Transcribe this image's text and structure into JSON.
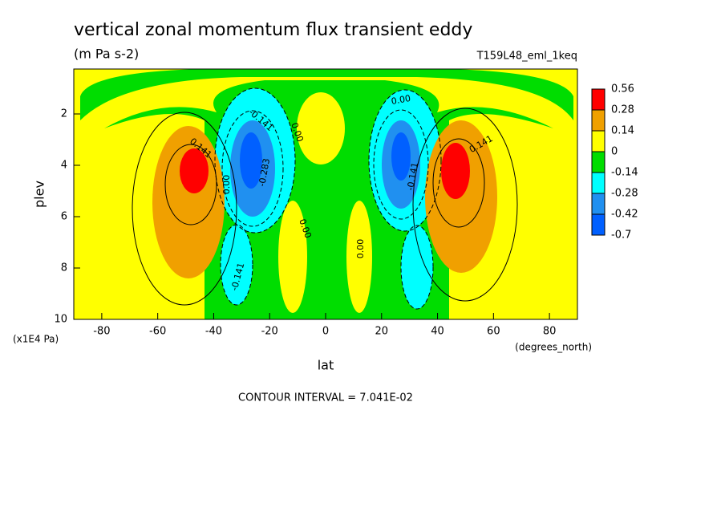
{
  "chart_data": {
    "type": "contour",
    "title": "vertical zonal momentum flux transient eddy",
    "subtitle": "(m Pa s-2)",
    "annotation": "T159L48_eml_1keq",
    "x_label": "lat",
    "x_units": "(degrees_north)",
    "y_label": "plev",
    "y_units": "(x1E4 Pa)",
    "footer": "CONTOUR INTERVAL = 7.041E-02",
    "xlim": [
      -90,
      90
    ],
    "xticks": [
      -80,
      -60,
      -40,
      -20,
      0,
      20,
      40,
      60,
      80
    ],
    "ylim": [
      10,
      0.25
    ],
    "yticks": [
      2,
      4,
      6,
      8,
      10
    ],
    "levels": [
      0.56,
      0.28,
      0.14,
      0,
      -0.14,
      -0.28,
      -0.42,
      -0.7
    ],
    "colors": [
      "#ff0000",
      "#f0a000",
      "#ffff00",
      "#00dd00",
      "#00ffff",
      "#2090f0",
      "#0060ff"
    ],
    "contour_labels": [
      "0.141",
      "0.00",
      "-0.141",
      "-0.283",
      "0.00",
      "0.00",
      "0.00",
      "0.00",
      "-0.141",
      "0.141",
      "-0.141"
    ]
  }
}
